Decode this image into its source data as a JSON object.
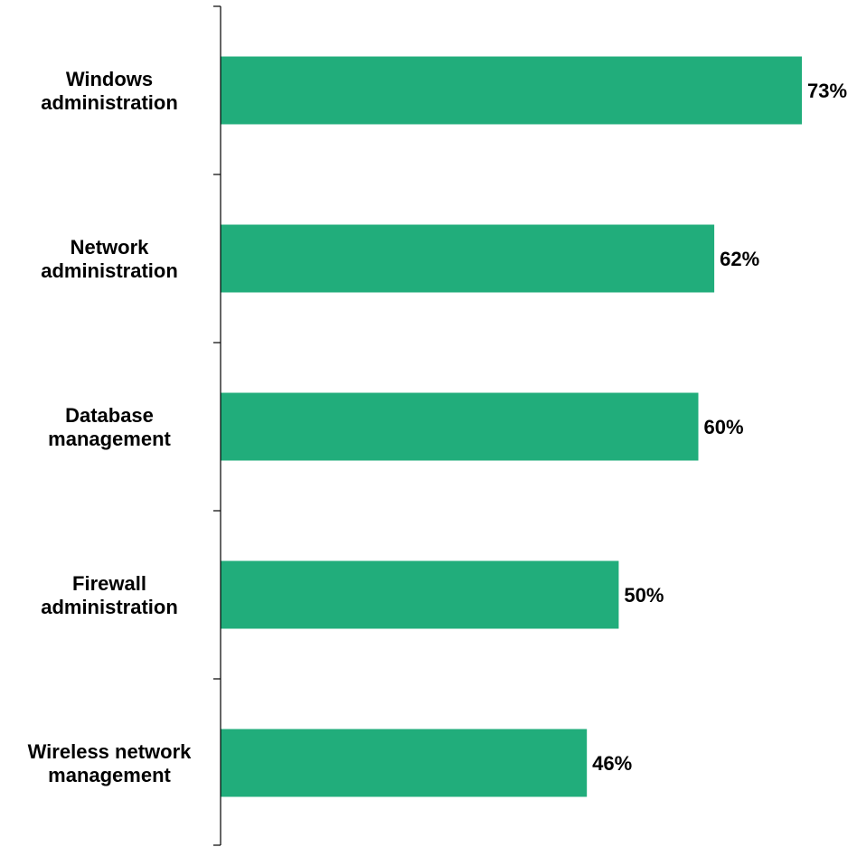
{
  "chart_data": {
    "type": "bar",
    "orientation": "horizontal",
    "categories": [
      [
        "Windows",
        "administration"
      ],
      [
        "Network",
        "administration"
      ],
      [
        "Database",
        "management"
      ],
      [
        "Firewall",
        "administration"
      ],
      [
        "Wireless network",
        "management"
      ]
    ],
    "values": [
      73,
      62,
      60,
      50,
      46
    ],
    "data_labels": [
      "73%",
      "62%",
      "60%",
      "50%",
      "46%"
    ],
    "value_unit": "%",
    "xlim": [
      0,
      73
    ],
    "bar_color": "#21ad7b",
    "grid": false,
    "legend": "none",
    "title": "",
    "xlabel": "",
    "ylabel": ""
  }
}
